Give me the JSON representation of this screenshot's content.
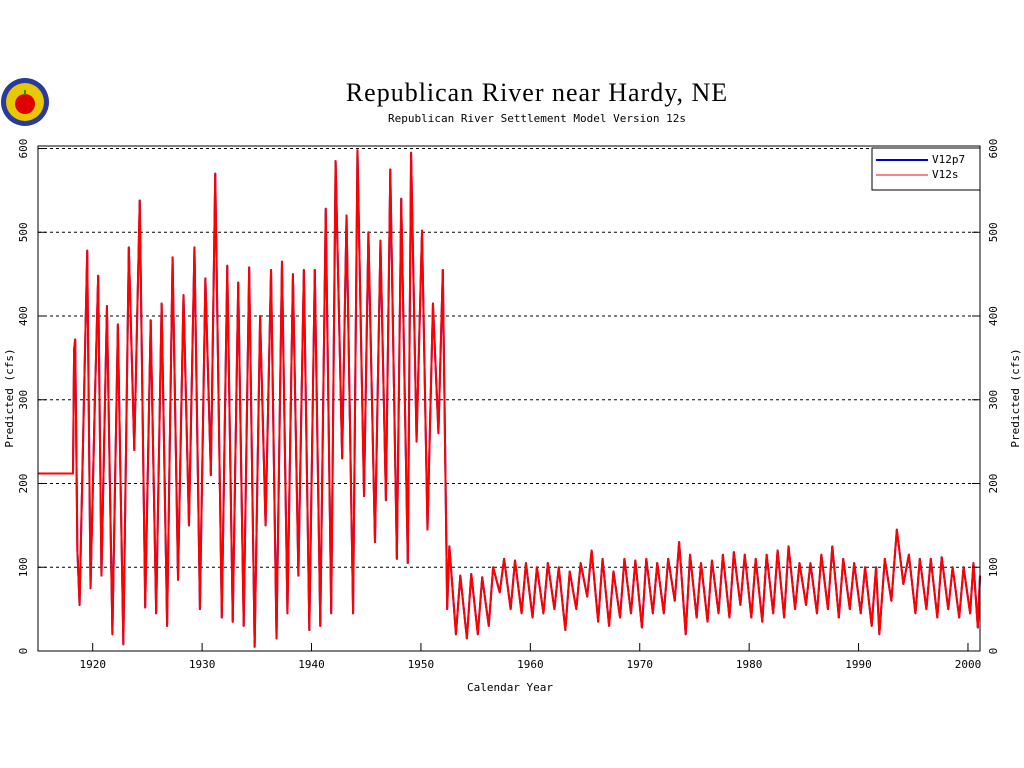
{
  "chart_data": {
    "type": "line",
    "title": "Republican River near Hardy, NE",
    "subtitle": "Republican River Settlement Model Version 12s",
    "x_label": "Calendar Year",
    "y_label": "Predicted (cfs)",
    "y2_label": "Predicted (cfs)",
    "xlim": [
      1915,
      2001.1
    ],
    "ylim": [
      0,
      603
    ],
    "xticks": [
      1920,
      1930,
      1940,
      1950,
      1960,
      1970,
      1980,
      1990,
      2000
    ],
    "yticks": [
      0,
      100,
      200,
      300,
      400,
      500,
      600
    ],
    "grid": true,
    "legend": "upper right",
    "x": [
      1915,
      1918.2,
      1918.3,
      1918.4,
      1918.6,
      1918.8,
      1919.2,
      1919.5,
      1919.8,
      1920.2,
      1920.5,
      1920.8,
      1921.3,
      1921.8,
      1922.3,
      1922.8,
      1923.3,
      1923.8,
      1924.3,
      1924.8,
      1925.3,
      1925.8,
      1926.3,
      1926.8,
      1927.3,
      1927.8,
      1928.3,
      1928.8,
      1929.3,
      1929.8,
      1930.3,
      1930.8,
      1931.2,
      1931.8,
      1932.3,
      1932.8,
      1933.3,
      1933.8,
      1934.3,
      1934.8,
      1935.3,
      1935.8,
      1936.3,
      1936.8,
      1937.3,
      1937.8,
      1938.3,
      1938.8,
      1939.3,
      1939.8,
      1940.3,
      1940.8,
      1941.3,
      1941.8,
      1942.2,
      1942.8,
      1943.2,
      1943.8,
      1944.2,
      1944.8,
      1945.2,
      1945.8,
      1946.3,
      1946.8,
      1947.2,
      1947.8,
      1948.2,
      1948.8,
      1949.1,
      1949.6,
      1950.1,
      1950.6,
      1951.1,
      1951.6,
      1952.0,
      1952.4,
      1952.6,
      1953.2,
      1953.6,
      1954.2,
      1954.6,
      1955.2,
      1955.6,
      1956.2,
      1956.6,
      1957.2,
      1957.6,
      1958.2,
      1958.6,
      1959.2,
      1959.6,
      1960.2,
      1960.6,
      1961.2,
      1961.6,
      1962.2,
      1962.6,
      1963.2,
      1963.6,
      1964.2,
      1964.6,
      1965.2,
      1965.6,
      1966.2,
      1966.6,
      1967.2,
      1967.6,
      1968.2,
      1968.6,
      1969.2,
      1969.6,
      1970.2,
      1970.6,
      1971.2,
      1971.6,
      1972.2,
      1972.6,
      1973.2,
      1973.6,
      1974.2,
      1974.6,
      1975.2,
      1975.6,
      1976.2,
      1976.6,
      1977.2,
      1977.6,
      1978.2,
      1978.6,
      1979.2,
      1979.6,
      1980.2,
      1980.6,
      1981.2,
      1981.6,
      1982.2,
      1982.6,
      1983.2,
      1983.6,
      1984.2,
      1984.6,
      1985.2,
      1985.6,
      1986.2,
      1986.6,
      1987.2,
      1987.6,
      1988.2,
      1988.6,
      1989.2,
      1989.6,
      1990.2,
      1990.6,
      1991.2,
      1991.6,
      1991.9,
      1992.4,
      1993.0,
      1993.5,
      1994.1,
      1994.6,
      1995.2,
      1995.6,
      1996.2,
      1996.6,
      1997.2,
      1997.6,
      1998.2,
      1998.6,
      1999.2,
      1999.6,
      2000.2,
      2000.5,
      2000.9,
      2001.1
    ],
    "series": [
      {
        "name": "V12p7",
        "color": "#0000cc",
        "values": [
          212,
          212,
          360,
          372,
          120,
          55,
          300,
          478,
          75,
          300,
          448,
          90,
          412,
          20,
          390,
          8,
          482,
          240,
          538,
          52,
          395,
          45,
          415,
          30,
          470,
          85,
          425,
          150,
          482,
          50,
          445,
          210,
          570,
          40,
          460,
          35,
          440,
          30,
          458,
          5,
          400,
          150,
          455,
          15,
          465,
          45,
          450,
          90,
          455,
          25,
          455,
          30,
          528,
          45,
          585,
          230,
          520,
          45,
          598,
          185,
          500,
          130,
          490,
          180,
          575,
          110,
          540,
          105,
          595,
          250,
          502,
          145,
          415,
          260,
          455,
          50,
          125,
          20,
          90,
          15,
          92,
          20,
          88,
          30,
          100,
          70,
          110,
          50,
          108,
          45,
          105,
          40,
          100,
          45,
          105,
          50,
          100,
          25,
          95,
          50,
          105,
          65,
          120,
          35,
          110,
          30,
          95,
          40,
          110,
          45,
          108,
          28,
          110,
          45,
          105,
          45,
          110,
          60,
          130,
          20,
          115,
          40,
          105,
          35,
          108,
          45,
          115,
          40,
          118,
          55,
          115,
          40,
          110,
          35,
          115,
          45,
          120,
          40,
          125,
          50,
          105,
          55,
          105,
          45,
          115,
          50,
          125,
          40,
          110,
          50,
          105,
          45,
          100,
          30,
          100,
          20,
          110,
          60,
          145,
          80,
          115,
          45,
          110,
          50,
          110,
          40,
          112,
          50,
          100,
          40,
          100,
          45,
          105,
          28,
          90
        ]
      },
      {
        "name": "V12s",
        "color": "#ff0000",
        "values": [
          212,
          212,
          360,
          372,
          120,
          55,
          300,
          478,
          75,
          300,
          448,
          90,
          412,
          20,
          390,
          8,
          482,
          240,
          538,
          52,
          395,
          45,
          415,
          30,
          470,
          85,
          425,
          150,
          482,
          50,
          445,
          210,
          570,
          40,
          460,
          35,
          440,
          30,
          458,
          5,
          400,
          150,
          455,
          15,
          465,
          45,
          450,
          90,
          455,
          25,
          455,
          30,
          528,
          45,
          585,
          230,
          520,
          45,
          598,
          185,
          500,
          130,
          490,
          180,
          575,
          110,
          540,
          105,
          595,
          250,
          502,
          145,
          415,
          260,
          455,
          50,
          125,
          20,
          90,
          15,
          92,
          20,
          88,
          30,
          100,
          70,
          110,
          50,
          108,
          45,
          105,
          40,
          100,
          45,
          105,
          50,
          100,
          25,
          95,
          50,
          105,
          65,
          120,
          35,
          110,
          30,
          95,
          40,
          110,
          45,
          108,
          28,
          110,
          45,
          105,
          45,
          110,
          60,
          130,
          20,
          115,
          40,
          105,
          35,
          108,
          45,
          115,
          40,
          118,
          55,
          115,
          40,
          110,
          35,
          115,
          45,
          120,
          40,
          125,
          50,
          105,
          55,
          105,
          45,
          115,
          50,
          125,
          40,
          110,
          50,
          105,
          45,
          100,
          30,
          100,
          20,
          110,
          60,
          145,
          80,
          115,
          45,
          110,
          50,
          110,
          40,
          112,
          50,
          100,
          40,
          100,
          45,
          105,
          28,
          90
        ]
      }
    ]
  }
}
